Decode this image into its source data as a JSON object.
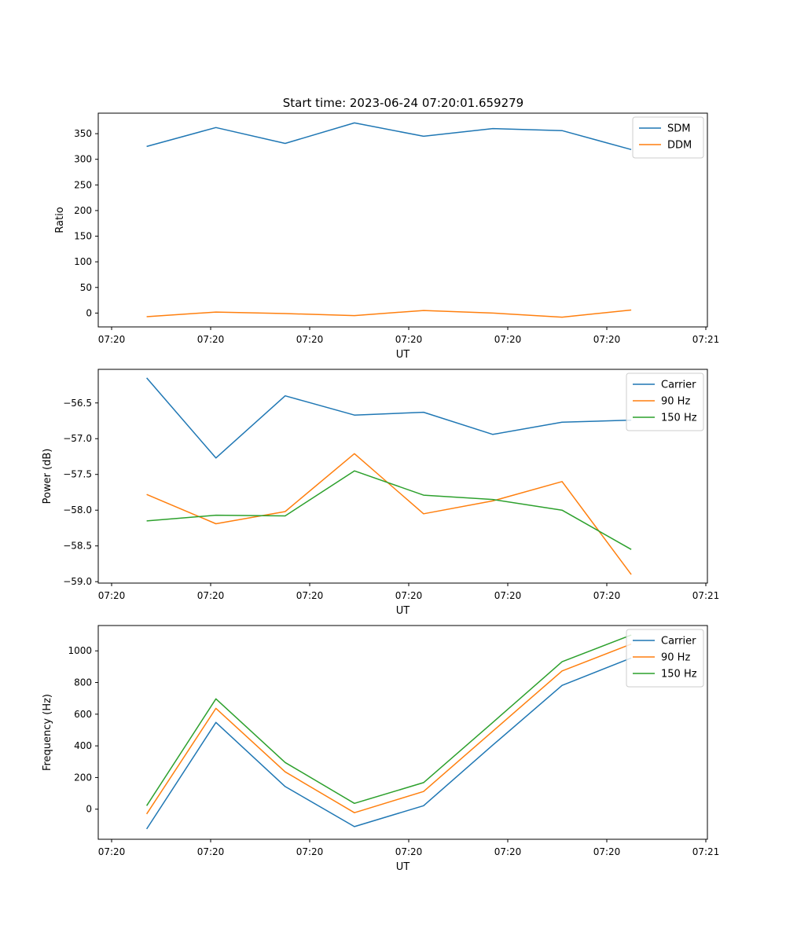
{
  "figure_title": "Start time: 2023-06-24 07:20:01.659279",
  "chart_data": [
    {
      "type": "line",
      "title": "Start time: 2023-06-24 07:20:01.659279",
      "xlabel": "UT",
      "ylabel": "Ratio",
      "x_tick_labels": [
        "07:20",
        "07:20",
        "07:20",
        "07:20",
        "07:20",
        "07:20",
        "07:21"
      ],
      "x": [
        1,
        2,
        3,
        4,
        5,
        6,
        7,
        8
      ],
      "xlim": [
        0.3,
        9.1
      ],
      "ylim": [
        -27,
        390
      ],
      "yticks": [
        0,
        50,
        100,
        150,
        200,
        250,
        300,
        350
      ],
      "y_tick_labels": [
        "0",
        "50",
        "100",
        "150",
        "200",
        "250",
        "300",
        "350"
      ],
      "legend": "top-right",
      "grid": false,
      "series": [
        {
          "name": "SDM",
          "color": "#1f77b4",
          "values": [
            325,
            362,
            331,
            371,
            345,
            360,
            356,
            319
          ]
        },
        {
          "name": "DDM",
          "color": "#ff7f0e",
          "values": [
            -7,
            2,
            -1,
            -5,
            5,
            0,
            -8,
            6
          ]
        }
      ]
    },
    {
      "type": "line",
      "xlabel": "UT",
      "ylabel": "Power (dB)",
      "x_tick_labels": [
        "07:20",
        "07:20",
        "07:20",
        "07:20",
        "07:20",
        "07:20",
        "07:21"
      ],
      "x": [
        1,
        2,
        3,
        4,
        5,
        6,
        7,
        8
      ],
      "xlim": [
        0.3,
        9.1
      ],
      "ylim": [
        -59.02,
        -56.03
      ],
      "yticks": [
        -59.0,
        -58.5,
        -58.0,
        -57.5,
        -57.0,
        -56.5
      ],
      "y_tick_labels": [
        "−59.0",
        "−58.5",
        "−58.0",
        "−57.5",
        "−57.0",
        "−56.5"
      ],
      "legend": "top-right",
      "grid": false,
      "series": [
        {
          "name": "Carrier",
          "color": "#1f77b4",
          "values": [
            -56.15,
            -57.27,
            -56.4,
            -56.67,
            -56.63,
            -56.94,
            -56.77,
            -56.74
          ]
        },
        {
          "name": "90 Hz",
          "color": "#ff7f0e",
          "values": [
            -57.78,
            -58.19,
            -58.02,
            -57.21,
            -58.05,
            -57.87,
            -57.6,
            -58.9
          ]
        },
        {
          "name": "150 Hz",
          "color": "#2ca02c",
          "values": [
            -58.15,
            -58.07,
            -58.08,
            -57.45,
            -57.79,
            -57.85,
            -58.0,
            -58.55
          ]
        }
      ]
    },
    {
      "type": "line",
      "xlabel": "UT",
      "ylabel": "Frequency (Hz)",
      "x_tick_labels": [
        "07:20",
        "07:20",
        "07:20",
        "07:20",
        "07:20",
        "07:20",
        "07:21"
      ],
      "x": [
        1,
        2,
        3,
        4,
        5,
        6,
        7,
        8
      ],
      "xlim": [
        0.3,
        9.1
      ],
      "ylim": [
        -190,
        1160
      ],
      "yticks": [
        0,
        200,
        400,
        600,
        800,
        1000
      ],
      "y_tick_labels": [
        "0",
        "200",
        "400",
        "600",
        "800",
        "1000"
      ],
      "legend": "top-right",
      "grid": false,
      "series": [
        {
          "name": "Carrier",
          "color": "#1f77b4",
          "values": [
            -125,
            548,
            143,
            -110,
            22,
            405,
            782,
            955
          ]
        },
        {
          "name": "90 Hz",
          "color": "#ff7f0e",
          "values": [
            -30,
            637,
            236,
            -22,
            112,
            493,
            873,
            1043
          ]
        },
        {
          "name": "150 Hz",
          "color": "#2ca02c",
          "values": [
            22,
            697,
            295,
            37,
            168,
            548,
            931,
            1100
          ]
        }
      ]
    }
  ]
}
